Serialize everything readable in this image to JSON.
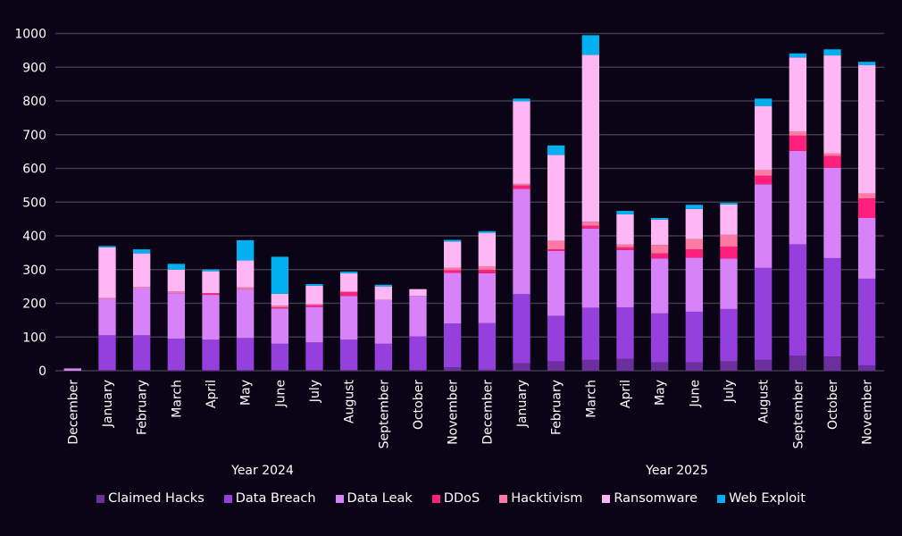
{
  "chart_data": {
    "type": "bar",
    "stacked": true,
    "title": "",
    "xlabel": "",
    "ylabel": "",
    "ylim": [
      0,
      1000
    ],
    "yticks": [
      0,
      100,
      200,
      300,
      400,
      500,
      600,
      700,
      800,
      900,
      1000
    ],
    "grid": true,
    "legend_position": "bottom",
    "groups": [
      {
        "label": "Year 2024",
        "start": 0,
        "end": 12
      },
      {
        "label": "Year 2025",
        "start": 12,
        "end": 24
      }
    ],
    "categories": [
      "December",
      "January",
      "February",
      "March",
      "April",
      "May",
      "June",
      "July",
      "August",
      "September",
      "October",
      "November",
      "December",
      "January",
      "February",
      "March",
      "April",
      "May",
      "June",
      "July",
      "August",
      "September",
      "October",
      "November"
    ],
    "series": [
      {
        "name": "Claimed Hacks",
        "color": "#6e2f9e",
        "values": [
          0,
          2,
          2,
          2,
          2,
          2,
          2,
          2,
          2,
          2,
          2,
          10,
          3,
          22,
          28,
          32,
          35,
          25,
          25,
          28,
          32,
          45,
          42,
          16
        ]
      },
      {
        "name": "Data Breach",
        "color": "#9540dc",
        "values": [
          0,
          103,
          103,
          93,
          90,
          95,
          78,
          82,
          90,
          78,
          100,
          130,
          138,
          205,
          135,
          155,
          153,
          145,
          150,
          155,
          273,
          330,
          292,
          257
        ]
      },
      {
        "name": "Data Leak",
        "color": "#d882fa",
        "values": [
          7,
          108,
          140,
          135,
          133,
          145,
          105,
          105,
          130,
          130,
          120,
          150,
          148,
          312,
          192,
          235,
          170,
          163,
          160,
          150,
          248,
          277,
          268,
          180
        ]
      },
      {
        "name": "DDoS",
        "color": "#ff1f7c",
        "values": [
          0,
          0,
          0,
          0,
          5,
          0,
          3,
          5,
          12,
          0,
          0,
          8,
          10,
          10,
          5,
          8,
          8,
          15,
          25,
          35,
          25,
          45,
          35,
          58
        ]
      },
      {
        "name": "Hacktivism",
        "color": "#ff7aa3",
        "values": [
          0,
          3,
          3,
          5,
          0,
          5,
          5,
          3,
          0,
          0,
          0,
          7,
          10,
          5,
          25,
          12,
          8,
          25,
          30,
          35,
          17,
          12,
          8,
          15
        ]
      },
      {
        "name": "Ransomware",
        "color": "#ffb6f5",
        "values": [
          0,
          150,
          100,
          65,
          65,
          80,
          35,
          55,
          55,
          40,
          20,
          78,
          100,
          245,
          255,
          495,
          90,
          75,
          90,
          90,
          190,
          220,
          290,
          380
        ]
      },
      {
        "name": "Web Exploit",
        "color": "#00b0f0",
        "values": [
          0,
          4,
          12,
          17,
          5,
          60,
          110,
          5,
          5,
          5,
          0,
          5,
          5,
          8,
          28,
          58,
          10,
          5,
          12,
          5,
          22,
          12,
          18,
          10
        ]
      }
    ]
  }
}
